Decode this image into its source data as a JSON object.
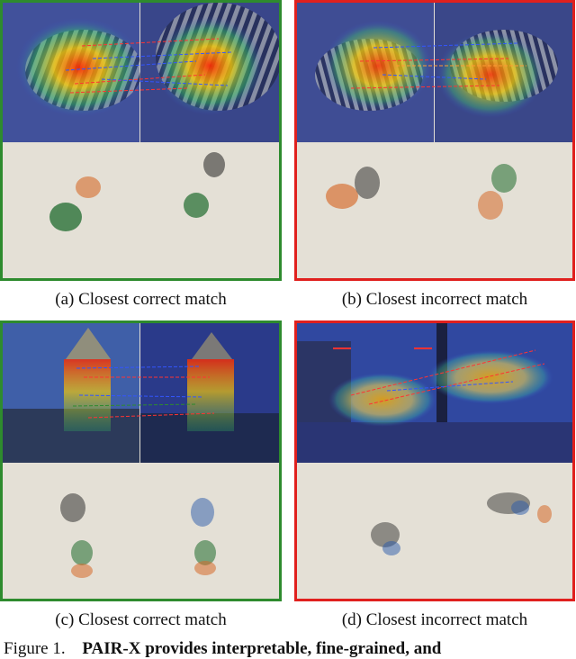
{
  "panels": [
    {
      "id": "a",
      "status": "correct",
      "caption": "(a) Closest correct match",
      "subject": "zebra",
      "frame_color": "#2e8b2e"
    },
    {
      "id": "b",
      "status": "incorrect",
      "caption": "(b) Closest incorrect match",
      "subject": "zebra",
      "frame_color": "#e0201e"
    },
    {
      "id": "c",
      "status": "correct",
      "caption": "(c) Closest correct match",
      "subject": "building",
      "frame_color": "#2e8b2e"
    },
    {
      "id": "d",
      "status": "incorrect",
      "caption": "(d) Closest incorrect match",
      "subject": "building",
      "frame_color": "#e0201e"
    }
  ],
  "figure": {
    "label": "Figure 1.",
    "text": "PAIR-X provides interpretable, fine-grained, and"
  }
}
